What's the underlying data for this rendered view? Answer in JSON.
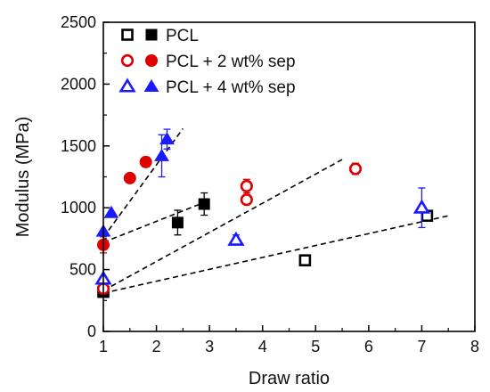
{
  "chart_data": {
    "type": "scatter",
    "xlabel": "Draw ratio",
    "ylabel": "Modulus (MPa)",
    "xlim": [
      1,
      8
    ],
    "ylim": [
      0,
      2500
    ],
    "xticks": [
      1,
      2,
      3,
      4,
      5,
      6,
      7,
      8
    ],
    "yticks": [
      0,
      500,
      1000,
      1500,
      2000,
      2500
    ],
    "grid": false,
    "legend_position": "top-left",
    "series": [
      {
        "name": "PCL",
        "color": "#000000",
        "marker": "square",
        "open_points": [
          {
            "x": 1.0,
            "y": 320,
            "err": 20
          },
          {
            "x": 4.8,
            "y": 575,
            "err": 0
          },
          {
            "x": 7.1,
            "y": 935,
            "err": 25
          }
        ],
        "filled_points": [
          {
            "x": 1.0,
            "y": 320,
            "err": 20
          },
          {
            "x": 2.4,
            "y": 880,
            "err": 100
          },
          {
            "x": 2.9,
            "y": 1030,
            "err": 90
          }
        ]
      },
      {
        "name": "PCL + 2 wt% sep",
        "color": "#e00000",
        "marker": "circle",
        "open_points": [
          {
            "x": 1.0,
            "y": 345,
            "err": 20
          },
          {
            "x": 3.7,
            "y": 1175,
            "err": 55
          },
          {
            "x": 3.7,
            "y": 1065,
            "err": 0
          },
          {
            "x": 5.75,
            "y": 1315,
            "err": 45
          }
        ],
        "filled_points": [
          {
            "x": 1.0,
            "y": 700,
            "err": 65
          },
          {
            "x": 1.5,
            "y": 1240,
            "err": 0
          },
          {
            "x": 1.8,
            "y": 1370,
            "err": 40
          }
        ]
      },
      {
        "name": "PCL + 4 wt% sep",
        "color": "#1a1aff",
        "marker": "triangle",
        "open_points": [
          {
            "x": 1.0,
            "y": 425,
            "err": 0
          },
          {
            "x": 3.5,
            "y": 740,
            "err": 40
          },
          {
            "x": 7.0,
            "y": 1000,
            "err": 160
          }
        ],
        "filled_points": [
          {
            "x": 1.0,
            "y": 810,
            "err": 0
          },
          {
            "x": 1.15,
            "y": 960,
            "err": 0
          },
          {
            "x": 2.1,
            "y": 1420,
            "err": 170
          },
          {
            "x": 2.2,
            "y": 1555,
            "err": 80
          }
        ]
      }
    ],
    "trend_lines": [
      {
        "x1": 1.0,
        "y1": 310,
        "x2": 7.5,
        "y2": 935
      },
      {
        "x1": 1.0,
        "y1": 330,
        "x2": 5.5,
        "y2": 1390
      },
      {
        "x1": 1.0,
        "y1": 720,
        "x2": 3.0,
        "y2": 1060
      },
      {
        "x1": 1.0,
        "y1": 760,
        "x2": 2.5,
        "y2": 1640
      }
    ]
  }
}
